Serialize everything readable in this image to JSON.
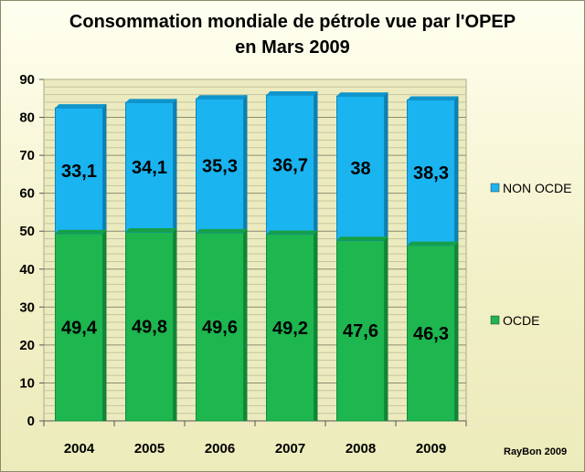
{
  "chart_data": {
    "type": "bar",
    "stacked": true,
    "title": "Consommation mondiale de pétrole vue par l'OPEP",
    "subtitle": "en Mars 2009",
    "categories": [
      "2004",
      "2005",
      "2006",
      "2007",
      "2008",
      "2009"
    ],
    "series": [
      {
        "name": "OCDE",
        "color": "#1db64f",
        "values": [
          49.4,
          49.8,
          49.6,
          49.2,
          47.6,
          46.3
        ],
        "labels": [
          "49,4",
          "49,8",
          "49,6",
          "49,2",
          "47,6",
          "46,3"
        ]
      },
      {
        "name": "NON OCDE",
        "color": "#1ab4f0",
        "values": [
          33.1,
          34.1,
          35.3,
          36.7,
          38,
          38.3
        ],
        "labels": [
          "33,1",
          "34,1",
          "35,3",
          "36,7",
          "38",
          "38,3"
        ]
      }
    ],
    "ylim": [
      0,
      90
    ],
    "yticks": [
      "0",
      "10",
      "20",
      "30",
      "40",
      "50",
      "60",
      "70",
      "80",
      "90"
    ],
    "grid": true,
    "legend_position": "right",
    "xlabel": "",
    "ylabel": ""
  },
  "credit": "RayBon 2009"
}
